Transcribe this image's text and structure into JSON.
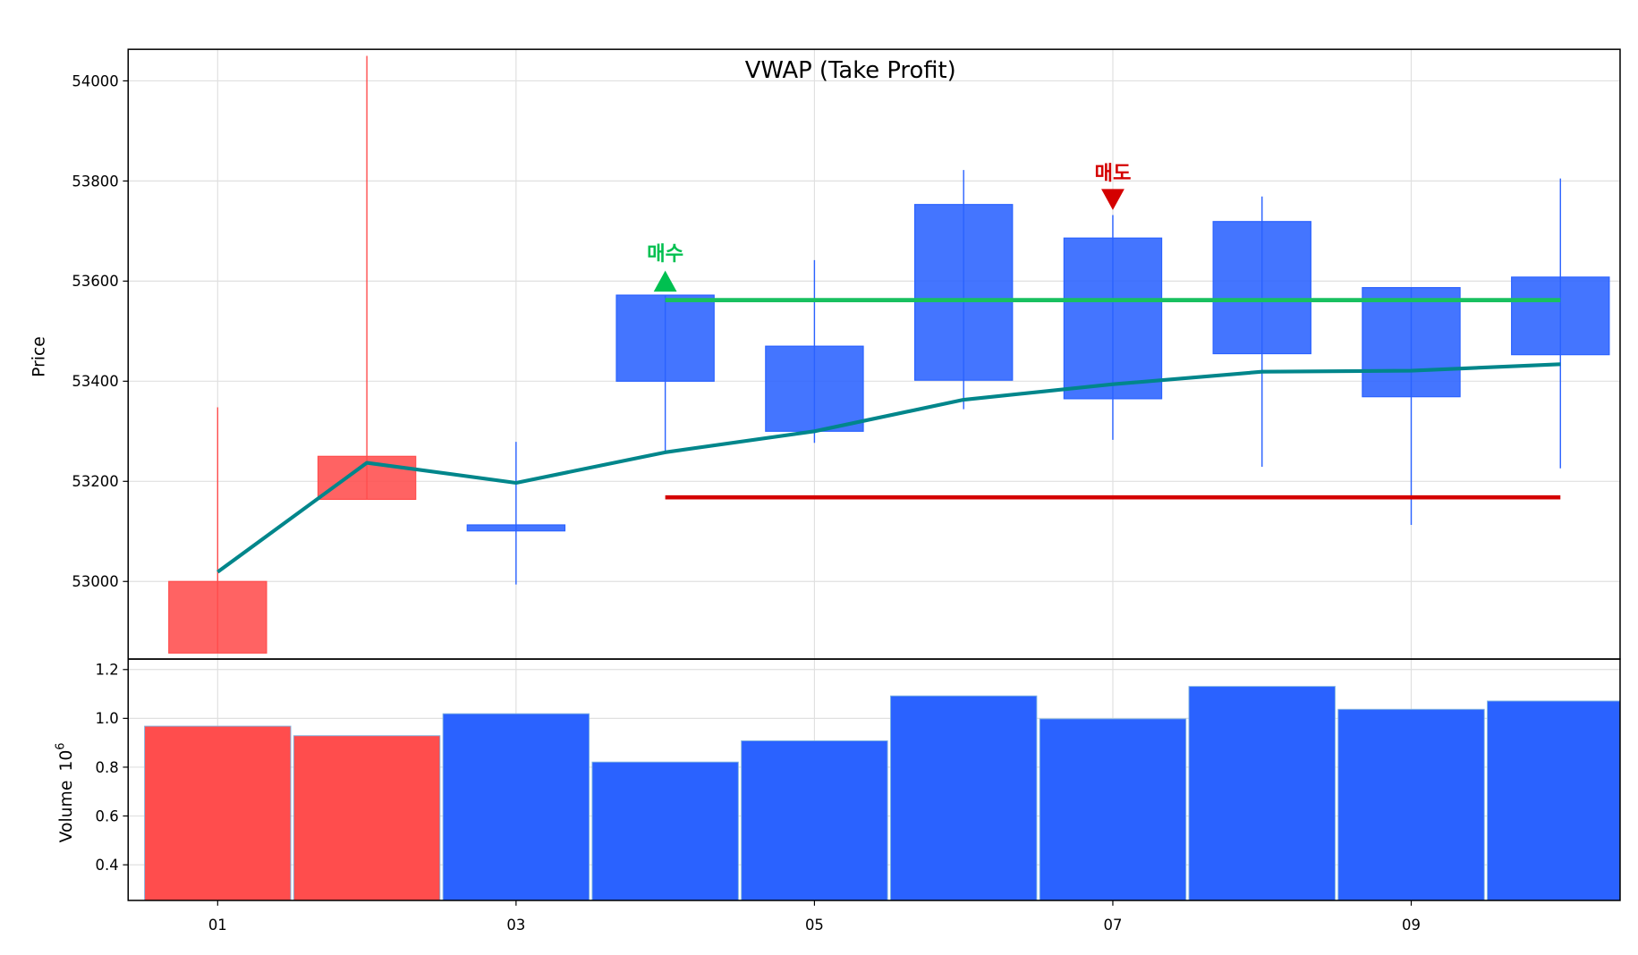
{
  "chart_data": {
    "type": "candlestick",
    "title": "VWAP (Take Profit)",
    "x": [
      "01",
      "02",
      "03",
      "04",
      "05",
      "06",
      "07",
      "08",
      "09",
      "10"
    ],
    "xticks": [
      "01",
      "03",
      "05",
      "07",
      "09"
    ],
    "price_panel": {
      "ylabel": "Price",
      "ylim": [
        52845,
        54063
      ],
      "yticks": [
        53000,
        53200,
        53400,
        53600,
        53800,
        54000
      ],
      "grid": true,
      "candles": [
        {
          "open": 52857,
          "close": 53000,
          "high": 53348,
          "low": 52857
        },
        {
          "open": 53164,
          "close": 53250,
          "high": 54050,
          "low": 53164
        },
        {
          "open": 53113,
          "close": 53101,
          "high": 53279,
          "low": 52994
        },
        {
          "open": 53572,
          "close": 53400,
          "high": 53572,
          "low": 53260
        },
        {
          "open": 53470,
          "close": 53300,
          "high": 53642,
          "low": 53277
        },
        {
          "open": 53753,
          "close": 53402,
          "high": 53822,
          "low": 53344
        },
        {
          "open": 53686,
          "close": 53365,
          "high": 53732,
          "low": 53283
        },
        {
          "open": 53719,
          "close": 53455,
          "high": 53769,
          "low": 53229
        },
        {
          "open": 53587,
          "close": 53369,
          "high": 53587,
          "low": 53113
        },
        {
          "open": 53608,
          "close": 53453,
          "high": 53805,
          "low": 53226
        }
      ],
      "vwap": [
        53019,
        53237,
        53197,
        53258,
        53300,
        53363,
        53394,
        53419,
        53421,
        53434
      ],
      "take_profit_line": {
        "value": 53562,
        "from": "04",
        "to": "10",
        "color": "#18c060"
      },
      "stop_line": {
        "value": 53168,
        "from": "04",
        "to": "10",
        "color": "#d40000"
      },
      "markers": [
        {
          "x": "04",
          "y": 53600,
          "label": "매수",
          "direction": "up",
          "color": "#00c050"
        },
        {
          "x": "07",
          "y": 53763,
          "label": "매도",
          "direction": "down",
          "color": "#d40000"
        }
      ]
    },
    "volume_panel": {
      "ylabel": "Volume",
      "scale_label": "10",
      "scale_exp": "6",
      "ylim": [
        0.254,
        1.243
      ],
      "yticks": [
        "0.4",
        "0.6",
        "0.8",
        "1.0",
        "1.2"
      ],
      "values": [
        0.968,
        0.929,
        1.019,
        0.821,
        0.908,
        1.092,
        0.998,
        1.131,
        1.037,
        1.071
      ]
    },
    "colors": {
      "up": "#ff4d4d",
      "down": "#2a62ff",
      "vwap": "#00868b"
    }
  }
}
